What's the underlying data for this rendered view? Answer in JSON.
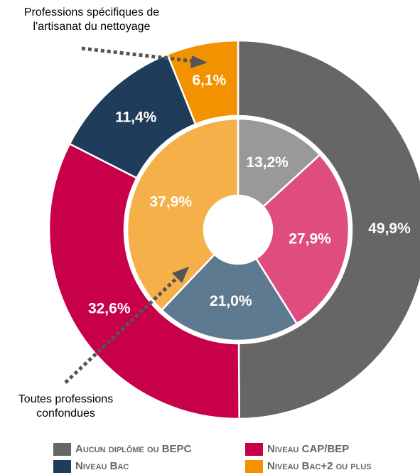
{
  "chart_data": {
    "type": "donut",
    "categories": [
      "Aucun diplôme ou BEPC",
      "Niveau CAP/BEP",
      "Niveau Bac",
      "Niveau Bac+2 ou plus"
    ],
    "series": [
      {
        "name": "Professions spécifiques de l'artisanat du nettoyage",
        "colors": [
          "#666666",
          "#c8004a",
          "#1f3d5a",
          "#f39200"
        ],
        "values": [
          49.9,
          32.6,
          11.4,
          6.1
        ],
        "value_labels": [
          "49,9%",
          "32,6%",
          "11,4%",
          "6,1%"
        ]
      },
      {
        "name": "Toutes professions confondues",
        "colors": [
          "#999999",
          "#de4d7e",
          "#5e7a90",
          "#f5b04a"
        ],
        "values": [
          13.2,
          27.9,
          21.0,
          37.9
        ],
        "value_labels": [
          "13,2%",
          "27,9%",
          "21,0%",
          "37,9%"
        ]
      }
    ],
    "legend": "bottom"
  }
}
